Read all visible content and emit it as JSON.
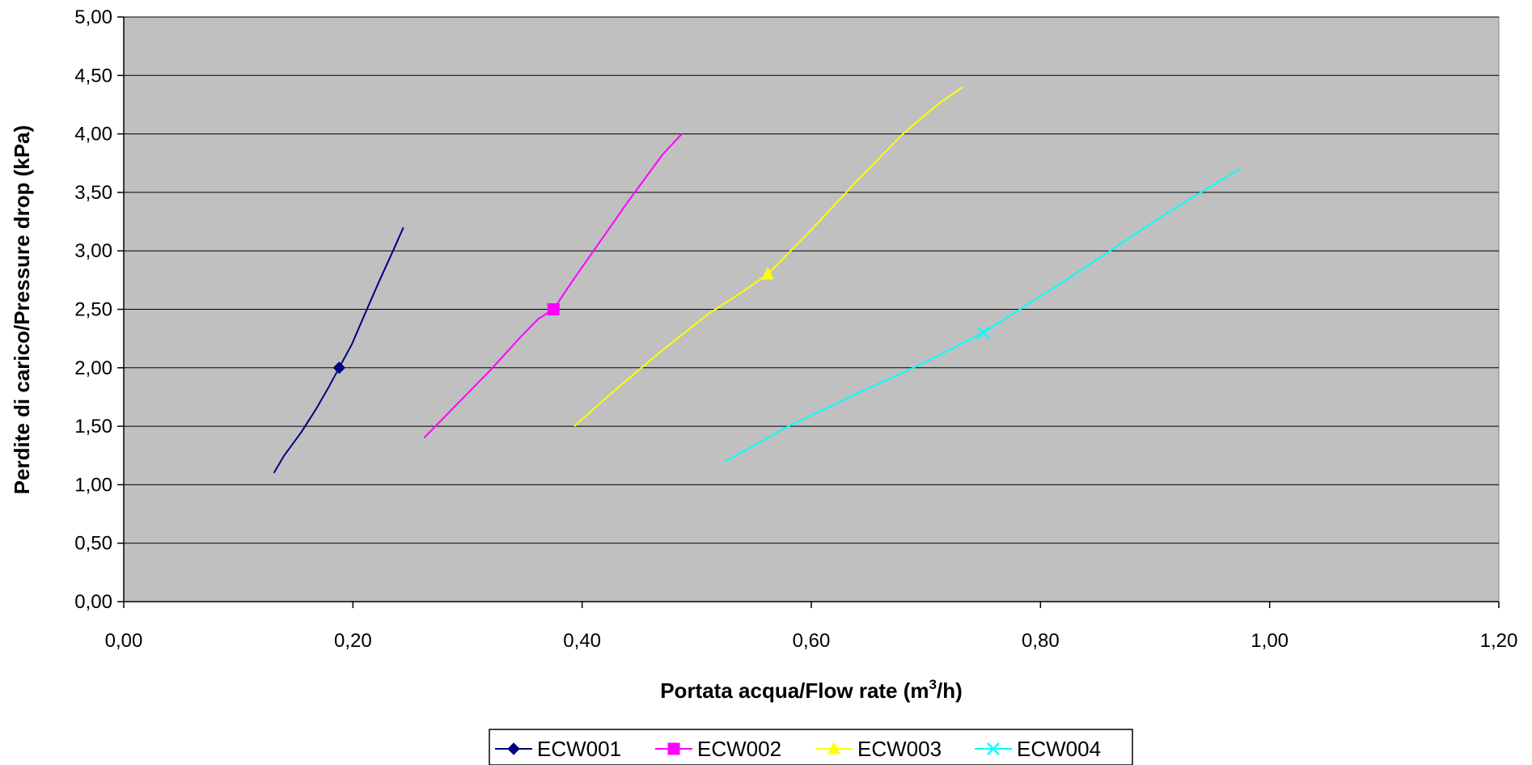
{
  "chart_data": {
    "type": "line",
    "title": "",
    "xlabel": "Portata acqua/Flow rate (m",
    "xlabel_sup": "3",
    "xlabel_suffix": "/h)",
    "ylabel": "Perdite di carico/Pressure drop (kPa)",
    "xlim": [
      0,
      1.2
    ],
    "ylim": [
      0,
      5
    ],
    "x_ticks": [
      0,
      0.2,
      0.4,
      0.6,
      0.8,
      1.0,
      1.2
    ],
    "x_tick_labels": [
      "0,00",
      "0,20",
      "0,40",
      "0,60",
      "0,80",
      "1,00",
      "1,20"
    ],
    "y_ticks": [
      0,
      0.5,
      1.0,
      1.5,
      2.0,
      2.5,
      3.0,
      3.5,
      4.0,
      4.5,
      5.0
    ],
    "y_tick_labels": [
      "0,00",
      "0,50",
      "1,00",
      "1,50",
      "2,00",
      "2,50",
      "3,00",
      "3,50",
      "4,00",
      "4,50",
      "5,00"
    ],
    "grid": "horizontal",
    "plot_background": "#C0C0C0",
    "legend_position": "bottom",
    "series": [
      {
        "name": "ECW001",
        "color": "#000080",
        "marker": "diamond",
        "x": [
          0.131,
          0.14,
          0.155,
          0.168,
          0.178,
          0.188,
          0.199,
          0.21,
          0.222,
          0.235,
          0.244
        ],
        "y": [
          1.1,
          1.25,
          1.45,
          1.65,
          1.82,
          2.0,
          2.2,
          2.45,
          2.72,
          3.0,
          3.2
        ],
        "marker_points": [
          {
            "x": 0.188,
            "y": 2.0
          }
        ]
      },
      {
        "name": "ECW002",
        "color": "#FF00FF",
        "marker": "square",
        "x": [
          0.262,
          0.29,
          0.32,
          0.345,
          0.362,
          0.375,
          0.39,
          0.41,
          0.44,
          0.47,
          0.487
        ],
        "y": [
          1.4,
          1.68,
          1.98,
          2.25,
          2.42,
          2.5,
          2.72,
          3.0,
          3.42,
          3.82,
          4.0
        ],
        "marker_points": [
          {
            "x": 0.375,
            "y": 2.5
          }
        ]
      },
      {
        "name": "ECW003",
        "color": "#FFFF00",
        "marker": "triangle",
        "x": [
          0.393,
          0.43,
          0.47,
          0.51,
          0.54,
          0.562,
          0.6,
          0.64,
          0.68,
          0.71,
          0.732
        ],
        "y": [
          1.5,
          1.82,
          2.15,
          2.46,
          2.65,
          2.8,
          3.18,
          3.6,
          4.0,
          4.25,
          4.4
        ],
        "marker_points": [
          {
            "x": 0.562,
            "y": 2.8
          }
        ]
      },
      {
        "name": "ECW004",
        "color": "#00FFFF",
        "marker": "x",
        "x": [
          0.525,
          0.58,
          0.64,
          0.7,
          0.75,
          0.79,
          0.83,
          0.87,
          0.91,
          0.95,
          0.974
        ],
        "y": [
          1.2,
          1.5,
          1.78,
          2.05,
          2.3,
          2.55,
          2.8,
          3.06,
          3.32,
          3.56,
          3.7
        ],
        "marker_points": [
          {
            "x": 0.75,
            "y": 2.3
          }
        ]
      }
    ]
  }
}
